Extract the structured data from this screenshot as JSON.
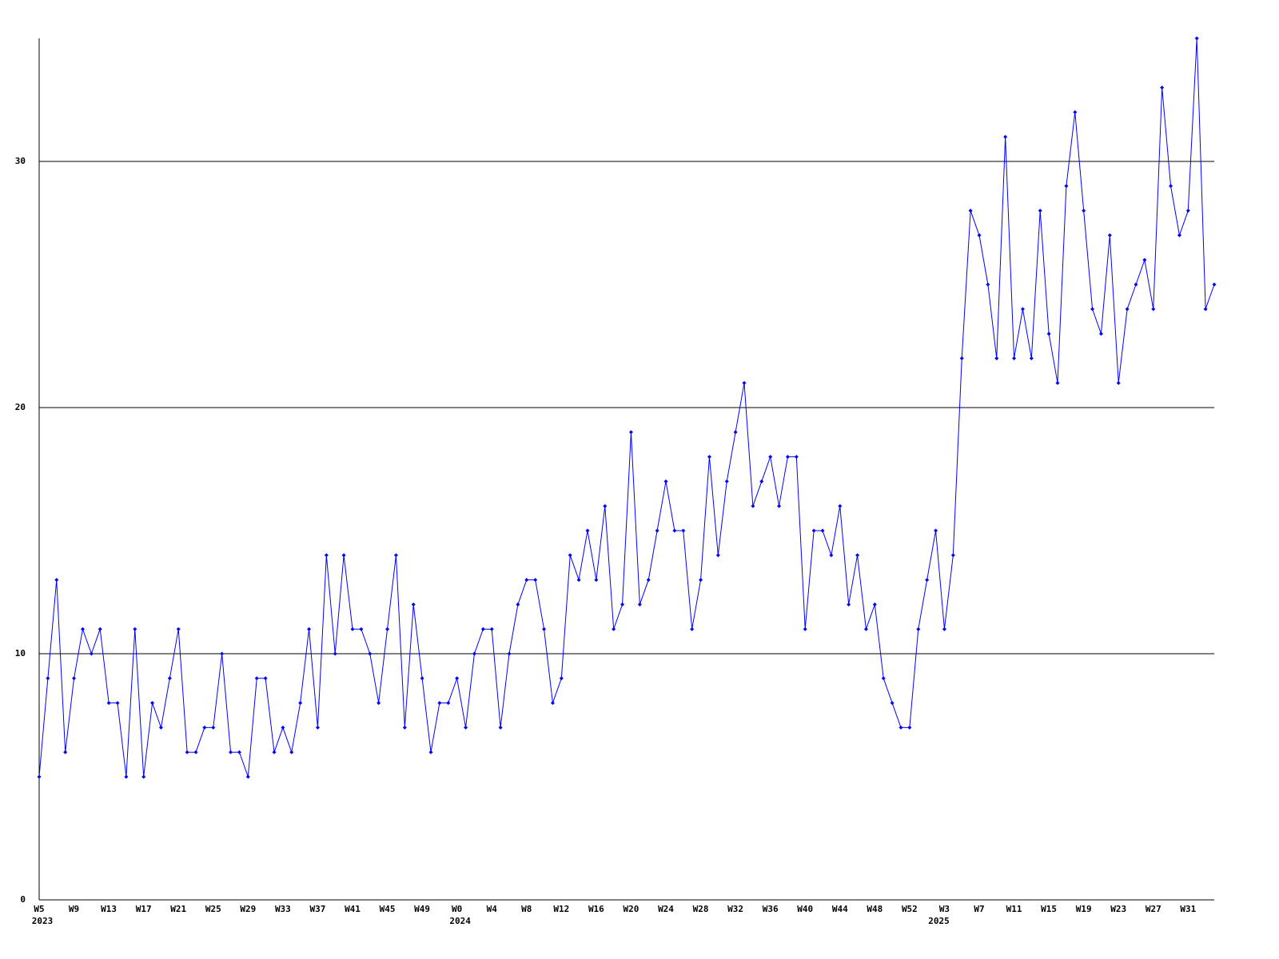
{
  "chart_data": {
    "type": "line",
    "color": "#0000ff",
    "categories": [
      "W5",
      null,
      null,
      null,
      "W9",
      null,
      null,
      null,
      "W13",
      null,
      null,
      null,
      "W17",
      null,
      null,
      null,
      "W21",
      null,
      null,
      null,
      "W25",
      null,
      null,
      null,
      "W29",
      null,
      null,
      null,
      "W33",
      null,
      null,
      null,
      "W37",
      null,
      null,
      null,
      "W41",
      null,
      null,
      null,
      "W45",
      null,
      null,
      null,
      "W49",
      null,
      null,
      null,
      "W0",
      null,
      null,
      null,
      "W4",
      null,
      null,
      null,
      "W8",
      null,
      null,
      null,
      "W12",
      null,
      null,
      null,
      "W16",
      null,
      null,
      null,
      "W20",
      null,
      null,
      null,
      "W24",
      null,
      null,
      null,
      "W28",
      null,
      null,
      null,
      "W32",
      null,
      null,
      null,
      "W36",
      null,
      null,
      null,
      "W40",
      null,
      null,
      null,
      "W44",
      null,
      null,
      null,
      "W48",
      null,
      null,
      null,
      "W52",
      null,
      null,
      null,
      "W3",
      null,
      null,
      null,
      "W7",
      null,
      null,
      null,
      "W11",
      null,
      null,
      null,
      "W15",
      null,
      null,
      null,
      "W19",
      null,
      null,
      null,
      "W23",
      null,
      null,
      null,
      "W27",
      null,
      null,
      null,
      "W31",
      null,
      null,
      null
    ],
    "years": [
      "2023",
      null,
      null,
      null,
      null,
      null,
      null,
      null,
      null,
      null,
      null,
      null,
      null,
      null,
      null,
      null,
      null,
      null,
      null,
      null,
      null,
      null,
      null,
      null,
      null,
      null,
      null,
      null,
      null,
      null,
      null,
      null,
      null,
      null,
      null,
      null,
      null,
      null,
      null,
      null,
      null,
      null,
      null,
      null,
      null,
      null,
      null,
      null,
      "2024",
      null,
      null,
      null,
      null,
      null,
      null,
      null,
      null,
      null,
      null,
      null,
      null,
      null,
      null,
      null,
      null,
      null,
      null,
      null,
      null,
      null,
      null,
      null,
      null,
      null,
      null,
      null,
      null,
      null,
      null,
      null,
      null,
      null,
      null,
      null,
      null,
      null,
      null,
      null,
      null,
      null,
      null,
      null,
      null,
      null,
      null,
      null,
      null,
      null,
      null,
      null,
      null,
      null,
      null,
      "2025",
      null,
      null,
      null,
      null,
      null,
      null,
      null,
      null,
      null,
      null,
      null,
      null,
      null,
      null,
      null,
      null,
      null,
      null,
      null,
      null,
      null,
      null,
      null,
      null,
      null,
      null,
      null,
      null,
      null,
      null,
      null,
      null,
      null
    ],
    "values": [
      5,
      9,
      13,
      6,
      9,
      11,
      10,
      11,
      8,
      8,
      5,
      11,
      5,
      8,
      7,
      9,
      11,
      6,
      6,
      7,
      7,
      10,
      6,
      6,
      5,
      9,
      9,
      6,
      7,
      6,
      8,
      11,
      7,
      14,
      10,
      14,
      11,
      11,
      10,
      8,
      11,
      14,
      7,
      12,
      9,
      6,
      8,
      8,
      9,
      7,
      10,
      11,
      11,
      7,
      10,
      12,
      13,
      13,
      11,
      8,
      9,
      14,
      13,
      15,
      13,
      16,
      11,
      12,
      19,
      12,
      13,
      15,
      17,
      15,
      15,
      11,
      13,
      18,
      14,
      17,
      19,
      21,
      16,
      17,
      18,
      16,
      18,
      18,
      11,
      15,
      15,
      14,
      16,
      12,
      14,
      11,
      12,
      9,
      8,
      7,
      7,
      11,
      13,
      15,
      11,
      14,
      22,
      28,
      27,
      25,
      22,
      31,
      22,
      24,
      22,
      28,
      23,
      21,
      29,
      32,
      28,
      24,
      23,
      27,
      21,
      24,
      25,
      26,
      24,
      33,
      29,
      27,
      28,
      35,
      24,
      25
    ],
    "ylim": [
      0,
      35
    ],
    "yticks": [
      0,
      10,
      20,
      30
    ],
    "grid": true
  }
}
